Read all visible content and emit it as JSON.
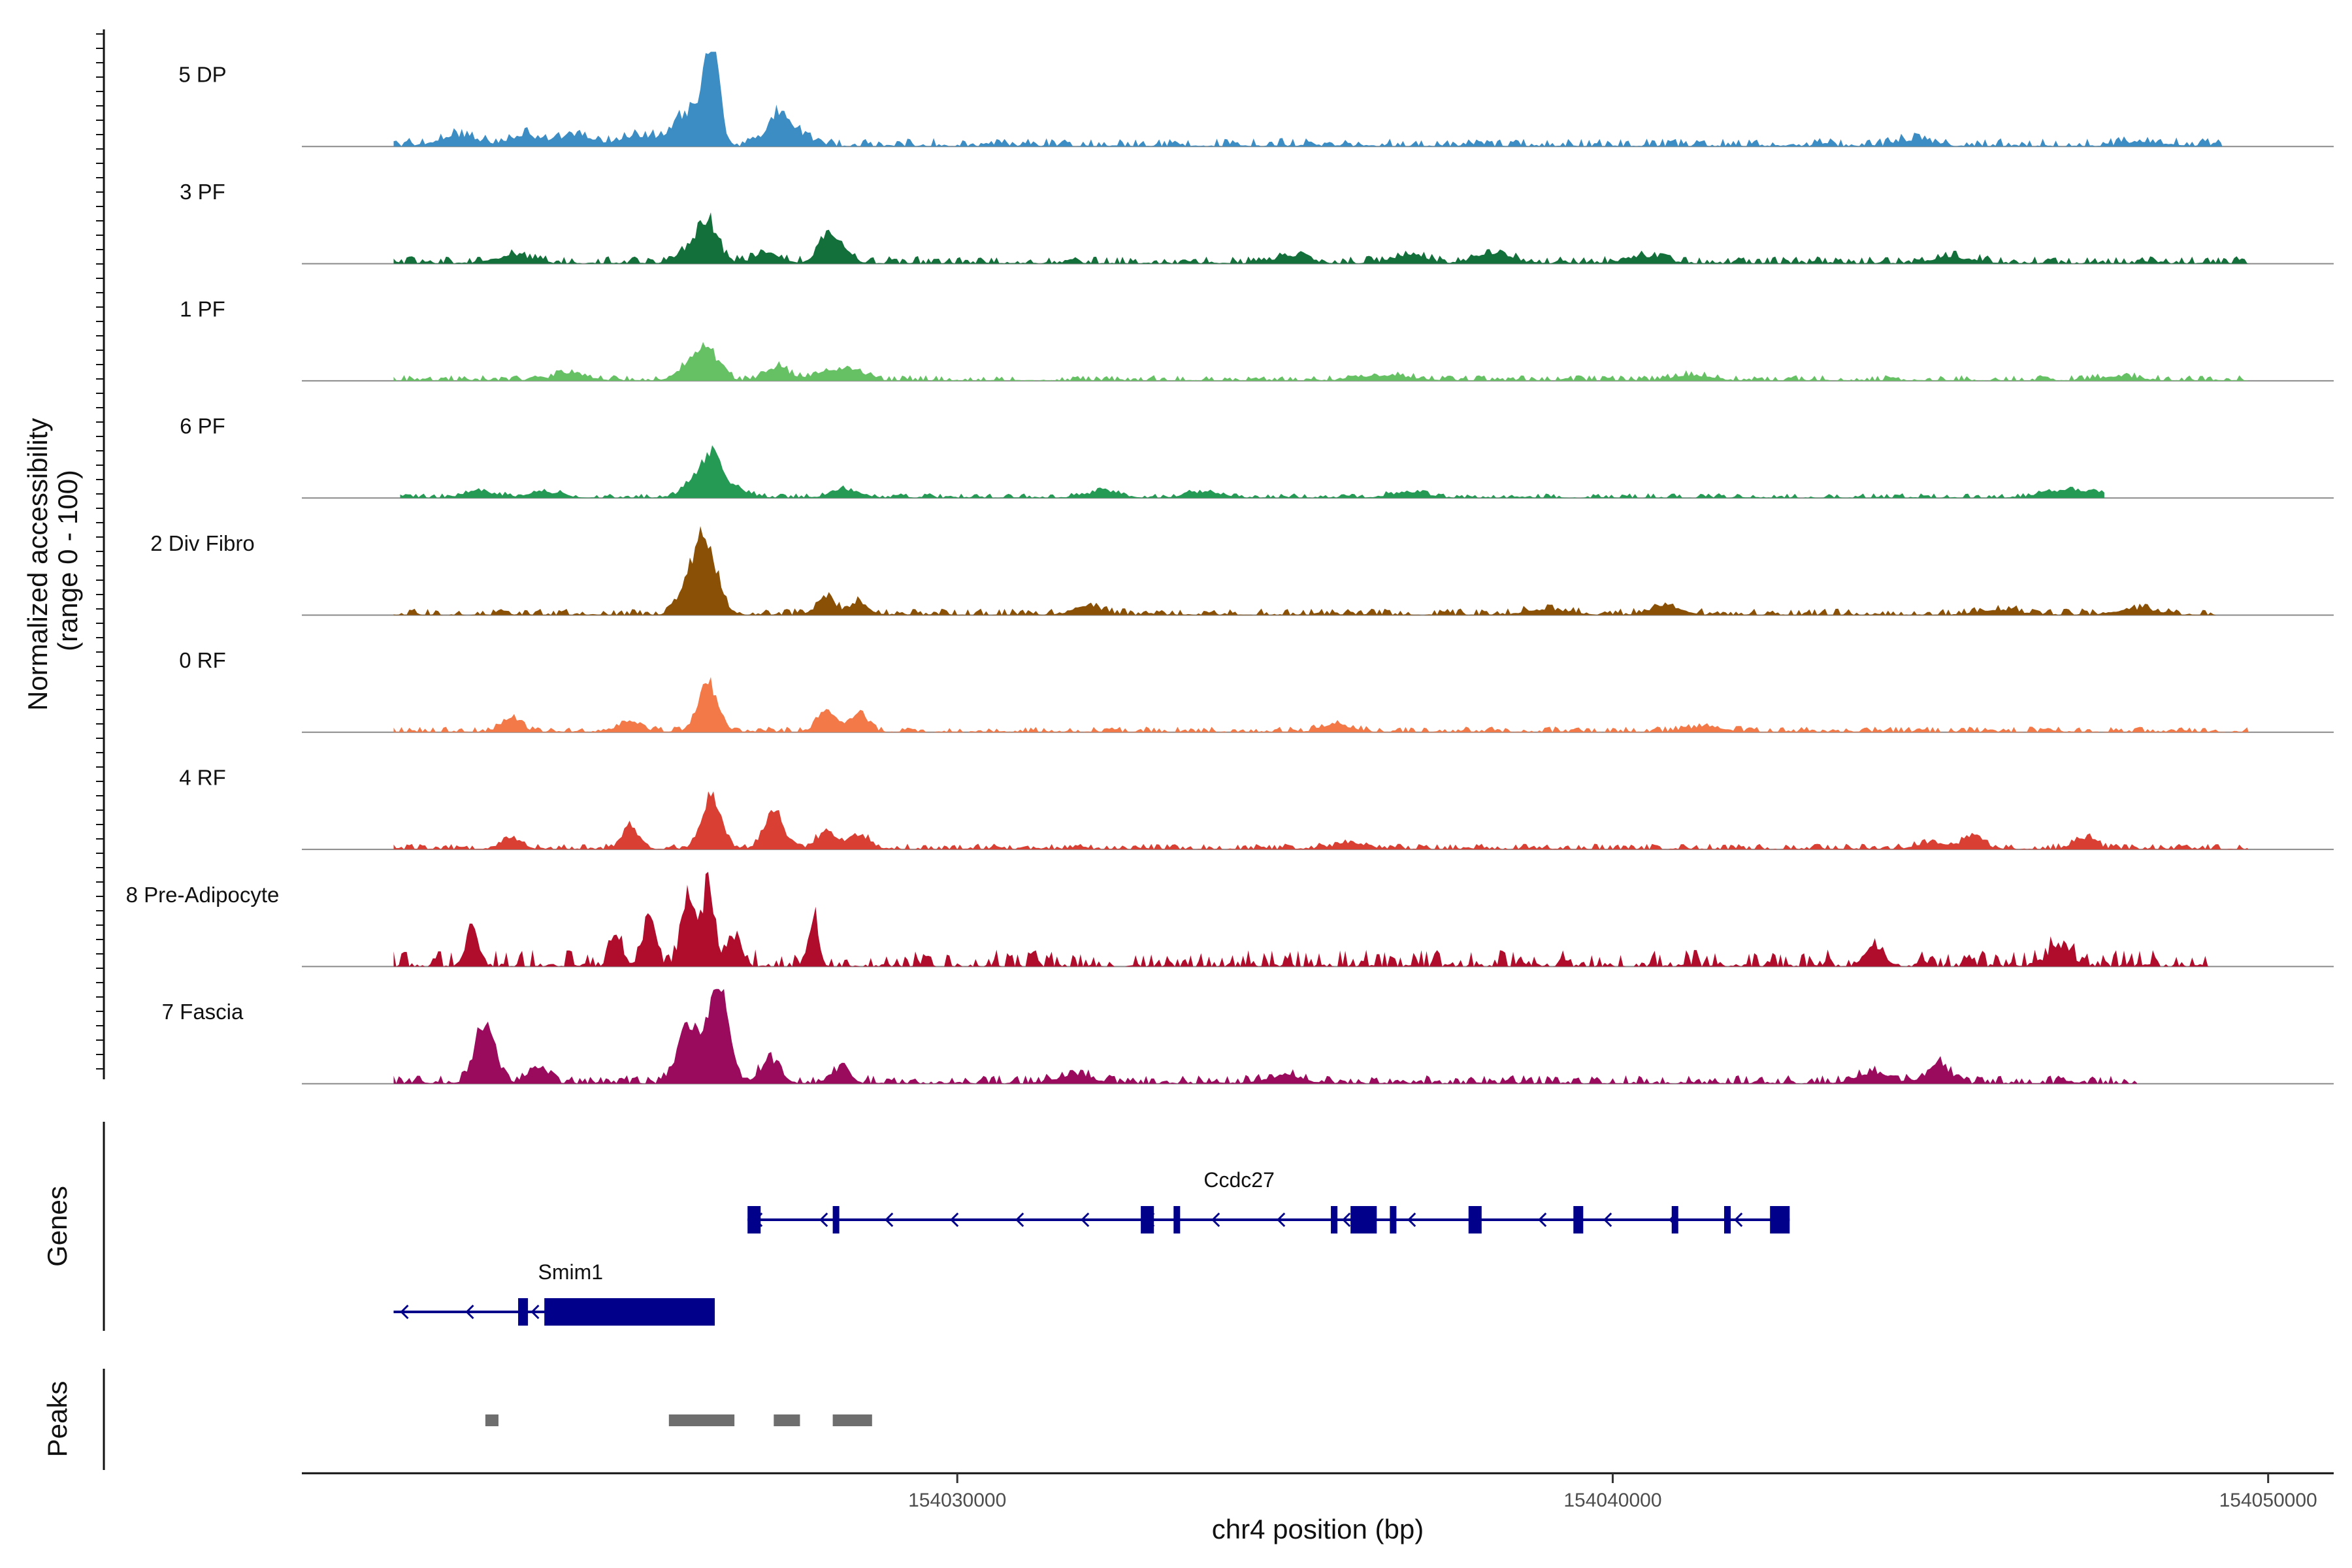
{
  "chart_data": {
    "type": "area",
    "title": "",
    "region": "chr4",
    "xlabel": "chr4 position (bp)",
    "ylabel_line1": "Normalized accessibility",
    "ylabel_line2": "(range 0 - 100)",
    "xlim": [
      154020000,
      154051000
    ],
    "xticks": [
      154030000,
      154040000,
      154050000
    ],
    "xtick_labels": [
      "154030000",
      "154040000",
      "154050000"
    ],
    "ylim": [
      0,
      100
    ],
    "genes_panel_label": "Genes",
    "peaks_panel_label": "Peaks",
    "series": [
      {
        "name": "5 DP",
        "color": "#3c8dc4",
        "data_start": 154021400,
        "data_end": 154049300,
        "peaks": [
          [
            154026260,
            100,
            110
          ],
          [
            154026000,
            32,
            200
          ],
          [
            154025700,
            14,
            180
          ],
          [
            154027250,
            28,
            160
          ],
          [
            154027500,
            12,
            200
          ],
          [
            154022400,
            10,
            300
          ],
          [
            154023400,
            12,
            220
          ],
          [
            154024200,
            10,
            250
          ],
          [
            154025100,
            10,
            250
          ],
          [
            154044600,
            6,
            250
          ],
          [
            154048100,
            4,
            300
          ]
        ],
        "noise": 9
      },
      {
        "name": "3 PF",
        "color": "#13703a",
        "data_start": 154021400,
        "data_end": 154049700,
        "peaks": [
          [
            154026200,
            42,
            150
          ],
          [
            154025900,
            14,
            180
          ],
          [
            154028000,
            28,
            140
          ],
          [
            154028250,
            16,
            120
          ],
          [
            154027100,
            10,
            200
          ],
          [
            154023200,
            8,
            250
          ],
          [
            154035100,
            8,
            250
          ],
          [
            154036900,
            8,
            250
          ],
          [
            154038200,
            10,
            250
          ],
          [
            154040500,
            6,
            300
          ],
          [
            154045200,
            6,
            300
          ]
        ],
        "noise": 8
      },
      {
        "name": "1 PF",
        "color": "#66c165",
        "data_start": 154021400,
        "data_end": 154049700,
        "peaks": [
          [
            154026200,
            30,
            170
          ],
          [
            154025900,
            14,
            180
          ],
          [
            154027250,
            14,
            180
          ],
          [
            154028000,
            8,
            220
          ],
          [
            154028400,
            10,
            200
          ],
          [
            154024100,
            8,
            250
          ],
          [
            154036500,
            5,
            400
          ],
          [
            154041200,
            5,
            300
          ],
          [
            154047700,
            4,
            300
          ]
        ],
        "noise": 6
      },
      {
        "name": "6 PF",
        "color": "#249a54",
        "data_start": 154021500,
        "data_end": 154047500,
        "peaks": [
          [
            154026250,
            42,
            150
          ],
          [
            154025950,
            14,
            150
          ],
          [
            154026600,
            10,
            200
          ],
          [
            154028300,
            8,
            220
          ],
          [
            154022700,
            6,
            250
          ],
          [
            154023700,
            6,
            250
          ],
          [
            154032200,
            6,
            250
          ],
          [
            154033800,
            6,
            250
          ],
          [
            154036900,
            6,
            250
          ],
          [
            154046700,
            6,
            250
          ],
          [
            154047200,
            6,
            250
          ]
        ],
        "noise": 5
      },
      {
        "name": "2 Div Fibro",
        "color": "#8a5006",
        "data_start": 154021400,
        "data_end": 154049200,
        "peaks": [
          [
            154026150,
            75,
            180
          ],
          [
            154025900,
            20,
            160
          ],
          [
            154028000,
            18,
            140
          ],
          [
            154028500,
            14,
            140
          ],
          [
            154032000,
            10,
            200
          ],
          [
            154040800,
            10,
            220
          ],
          [
            154039000,
            6,
            300
          ],
          [
            154045900,
            5,
            300
          ],
          [
            154048000,
            6,
            300
          ]
        ],
        "noise": 7
      },
      {
        "name": "0 RF",
        "color": "#f37948",
        "data_start": 154021400,
        "data_end": 154049700,
        "peaks": [
          [
            154026200,
            50,
            150
          ],
          [
            154028000,
            22,
            140
          ],
          [
            154028500,
            18,
            140
          ],
          [
            154023200,
            14,
            150
          ],
          [
            154025000,
            8,
            200
          ],
          [
            154035800,
            8,
            220
          ],
          [
            154041400,
            5,
            300
          ]
        ],
        "noise": 6
      },
      {
        "name": "4 RF",
        "color": "#d93f32",
        "data_start": 154021400,
        "data_end": 154049700,
        "peaks": [
          [
            154026250,
            55,
            150
          ],
          [
            154027200,
            42,
            140
          ],
          [
            154025000,
            24,
            120
          ],
          [
            154028000,
            18,
            150
          ],
          [
            154028500,
            16,
            150
          ],
          [
            154023200,
            12,
            150
          ],
          [
            154044900,
            6,
            250
          ],
          [
            154045500,
            14,
            150
          ],
          [
            154047200,
            12,
            160
          ],
          [
            154036000,
            6,
            250
          ]
        ],
        "noise": 6
      },
      {
        "name": "8 Pre-Adipocyte",
        "color": "#b00d2d",
        "data_start": 154021400,
        "data_end": 154049100,
        "peaks": [
          [
            154026200,
            100,
            100
          ],
          [
            154025900,
            70,
            120
          ],
          [
            154025300,
            50,
            100
          ],
          [
            154027800,
            55,
            80
          ],
          [
            154022600,
            40,
            100
          ],
          [
            154024800,
            38,
            90
          ],
          [
            154026600,
            40,
            100
          ],
          [
            154044000,
            20,
            150
          ],
          [
            154046800,
            20,
            200
          ]
        ],
        "noise": 18,
        "style": "blocky"
      },
      {
        "name": "7 Fascia",
        "color": "#9a0b5e",
        "data_start": 154021400,
        "data_end": 154048000,
        "peaks": [
          [
            154026350,
            105,
            150
          ],
          [
            154025900,
            60,
            160
          ],
          [
            154022800,
            65,
            150
          ],
          [
            154027150,
            25,
            150
          ],
          [
            154023600,
            18,
            150
          ],
          [
            154028200,
            14,
            150
          ],
          [
            154045000,
            18,
            170
          ],
          [
            154044000,
            10,
            250
          ],
          [
            154031800,
            8,
            250
          ],
          [
            154035000,
            8,
            250
          ]
        ],
        "noise": 9
      }
    ],
    "genes": [
      {
        "name": "Ccdc27",
        "strand": "-",
        "start": 154026800,
        "end": 154042700,
        "exons": [
          [
            154026800,
            154027000
          ],
          [
            154028100,
            154028200
          ],
          [
            154032800,
            154033000
          ],
          [
            154033300,
            154033400
          ],
          [
            154035700,
            154035800
          ],
          [
            154036000,
            154036400
          ],
          [
            154036600,
            154036700
          ],
          [
            154037800,
            154038000
          ],
          [
            154039400,
            154039550
          ],
          [
            154040900,
            154041000
          ],
          [
            154041700,
            154041800
          ],
          [
            154042400,
            154042700
          ]
        ],
        "label_at": 154034300
      },
      {
        "name": "Smim1",
        "strand": "-",
        "start": 154021400,
        "end": 154026300,
        "exons": [
          [
            154023300,
            154023450
          ],
          [
            154023700,
            154026300
          ]
        ],
        "label_at": 154024100
      }
    ],
    "peak_regions": [
      [
        154022800,
        154023000
      ],
      [
        154025600,
        154026600
      ],
      [
        154027200,
        154027600
      ],
      [
        154028100,
        154028700
      ]
    ]
  }
}
